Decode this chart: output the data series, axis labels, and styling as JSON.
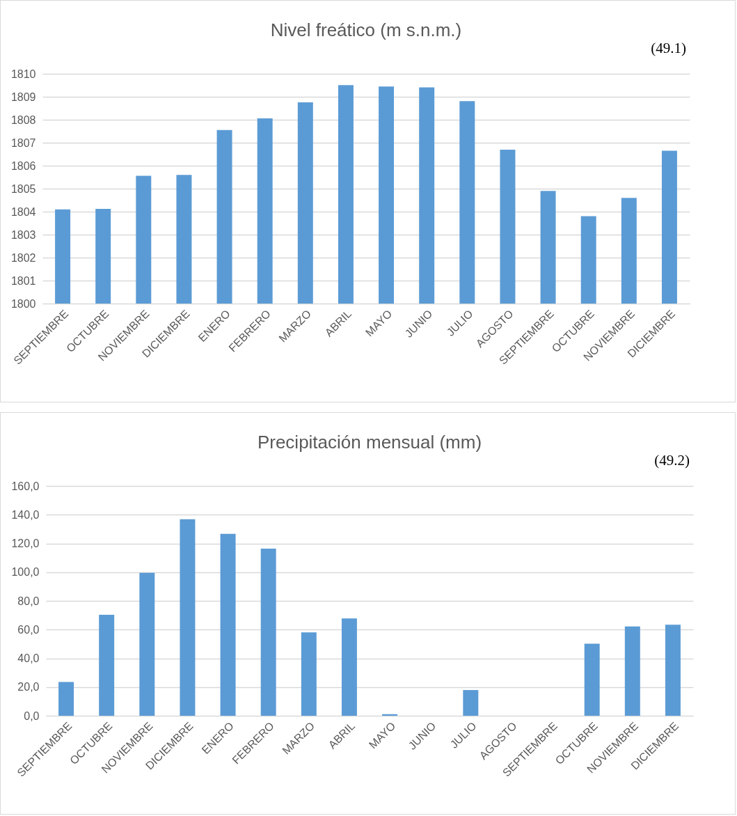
{
  "chart_data": [
    {
      "type": "bar",
      "title": "Nivel freático (m s.n.m.)",
      "annotations": [
        "(49.1)"
      ],
      "categories": [
        "SEPTIEMBRE",
        "OCTUBRE",
        "NOVIEMBRE",
        "DICIEMBRE",
        "ENERO",
        "FEBRERO",
        "MARZO",
        "ABRIL",
        "MAYO",
        "JUNIO",
        "JULIO",
        "AGOSTO",
        "SEPTIEMBRE",
        "OCTUBRE",
        "NOVIEMBRE",
        "DICIEMBRE"
      ],
      "values": [
        1804.1,
        1804.12,
        1805.56,
        1805.6,
        1807.55,
        1808.06,
        1808.76,
        1809.51,
        1809.45,
        1809.41,
        1808.81,
        1806.7,
        1804.9,
        1803.8,
        1804.6,
        1806.65
      ],
      "color": "#5b9bd5",
      "ylim": [
        1800,
        1810
      ],
      "yticks": [
        1800,
        1801,
        1802,
        1803,
        1804,
        1805,
        1806,
        1807,
        1808,
        1809,
        1810
      ],
      "grid": "y"
    },
    {
      "type": "bar",
      "title": "Precipitación mensual (mm)",
      "annotations": [
        "(49.2)"
      ],
      "categories": [
        "SEPTIEMBRE",
        "OCTUBRE",
        "NOVIEMBRE",
        "DICIEMBRE",
        "ENERO",
        "FEBRERO",
        "MARZO",
        "ABRIL",
        "MAYO",
        "JUNIO",
        "JULIO",
        "AGOSTO",
        "SEPTIEMBRE",
        "OCTUBRE",
        "NOVIEMBRE",
        "DICIEMBRE"
      ],
      "values": [
        23.5,
        70.3,
        99.5,
        136.8,
        126.7,
        116.4,
        58.1,
        67.7,
        1.1,
        0,
        17.9,
        0,
        0,
        50.2,
        62.2,
        63.4
      ],
      "color": "#5b9bd5",
      "ylim": [
        0,
        160
      ],
      "yticks": [
        {
          "value": 0,
          "label": "0,0"
        },
        {
          "value": 20,
          "label": "20,0"
        },
        {
          "value": 40,
          "label": "40,0"
        },
        {
          "value": 60,
          "label": "60,0"
        },
        {
          "value": 80,
          "label": "80,0"
        },
        {
          "value": 100,
          "label": "100,0"
        },
        {
          "value": 120,
          "label": "120,0"
        },
        {
          "value": 140,
          "label": "140,0"
        },
        {
          "value": 160,
          "label": "160,0"
        }
      ],
      "grid": "y"
    }
  ]
}
